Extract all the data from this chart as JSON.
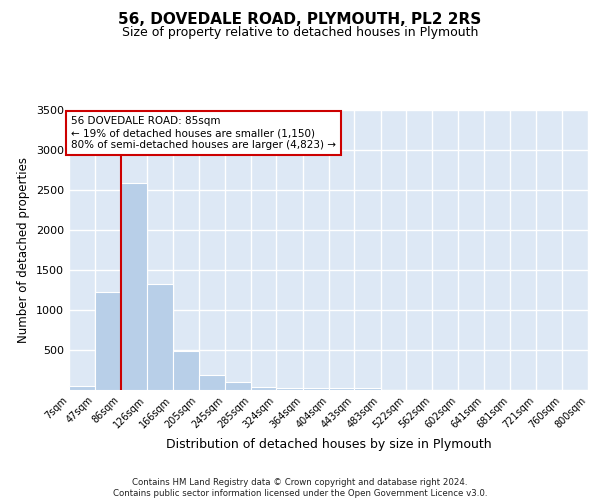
{
  "title": "56, DOVEDALE ROAD, PLYMOUTH, PL2 2RS",
  "subtitle": "Size of property relative to detached houses in Plymouth",
  "xlabel": "Distribution of detached houses by size in Plymouth",
  "ylabel": "Number of detached properties",
  "bar_color": "#b8cfe8",
  "background_color": "#dde8f5",
  "grid_color": "#ffffff",
  "bin_edges": [
    7,
    47,
    86,
    126,
    166,
    205,
    245,
    285,
    324,
    364,
    404,
    443,
    483,
    522,
    562,
    602,
    641,
    681,
    721,
    760,
    800
  ],
  "bin_labels": [
    "7sqm",
    "47sqm",
    "86sqm",
    "126sqm",
    "166sqm",
    "205sqm",
    "245sqm",
    "285sqm",
    "324sqm",
    "364sqm",
    "404sqm",
    "443sqm",
    "483sqm",
    "522sqm",
    "562sqm",
    "602sqm",
    "641sqm",
    "681sqm",
    "721sqm",
    "760sqm",
    "800sqm"
  ],
  "counts": [
    50,
    1230,
    2590,
    1330,
    490,
    185,
    105,
    40,
    30,
    25,
    20,
    25,
    0,
    0,
    0,
    0,
    0,
    0,
    0,
    0
  ],
  "property_line_x": 86,
  "annotation_text": "56 DOVEDALE ROAD: 85sqm\n← 19% of detached houses are smaller (1,150)\n80% of semi-detached houses are larger (4,823) →",
  "annotation_box_color": "#ffffff",
  "annotation_border_color": "#cc0000",
  "red_line_color": "#cc0000",
  "ylim": [
    0,
    3500
  ],
  "yticks": [
    0,
    500,
    1000,
    1500,
    2000,
    2500,
    3000,
    3500
  ],
  "footer_line1": "Contains HM Land Registry data © Crown copyright and database right 2024.",
  "footer_line2": "Contains public sector information licensed under the Open Government Licence v3.0."
}
